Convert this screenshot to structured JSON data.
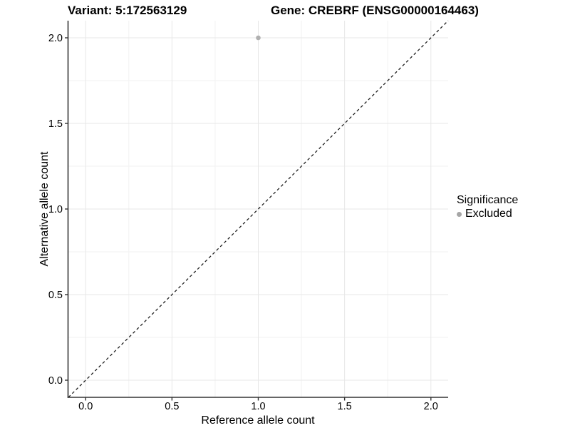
{
  "title": {
    "variant": "Variant: 5:172563129",
    "gene": "Gene: CREBRF (ENSG00000164463)"
  },
  "chart_data": {
    "type": "scatter",
    "title_left": "Variant: 5:172563129",
    "title_right": "Gene: CREBRF (ENSG00000164463)",
    "xlabel": "Reference allele count",
    "ylabel": "Alternative allele count",
    "xlim": [
      -0.1,
      2.1
    ],
    "ylim": [
      -0.1,
      2.1
    ],
    "x_ticks": [
      0.0,
      0.5,
      1.0,
      1.5,
      2.0
    ],
    "y_ticks": [
      0.0,
      0.5,
      1.0,
      1.5,
      2.0
    ],
    "x_minor_ticks": [
      0.25,
      0.75,
      1.25,
      1.75
    ],
    "y_minor_ticks": [
      0.25,
      0.75,
      1.25,
      1.75
    ],
    "tick_decimals": 1,
    "grid": true,
    "reference_line": {
      "type": "identity",
      "from": [
        -0.1,
        -0.1
      ],
      "to": [
        2.1,
        2.1
      ],
      "style": "dashed",
      "color": "#1f1f1f"
    },
    "series": [
      {
        "name": "Excluded",
        "color": "#b0b0b0",
        "points": [
          {
            "x": 1.0,
            "y": 2.0
          }
        ]
      }
    ],
    "legend": {
      "title": "Significance",
      "position": "right",
      "entries": [
        {
          "label": "Excluded",
          "color": "#a6a6a6"
        }
      ]
    },
    "colors": {
      "background": "#ffffff",
      "grid_major": "#e7e7e7",
      "grid_minor": "#f2f2f2",
      "axis_line": "#333333",
      "tick_text": "#000000"
    }
  }
}
